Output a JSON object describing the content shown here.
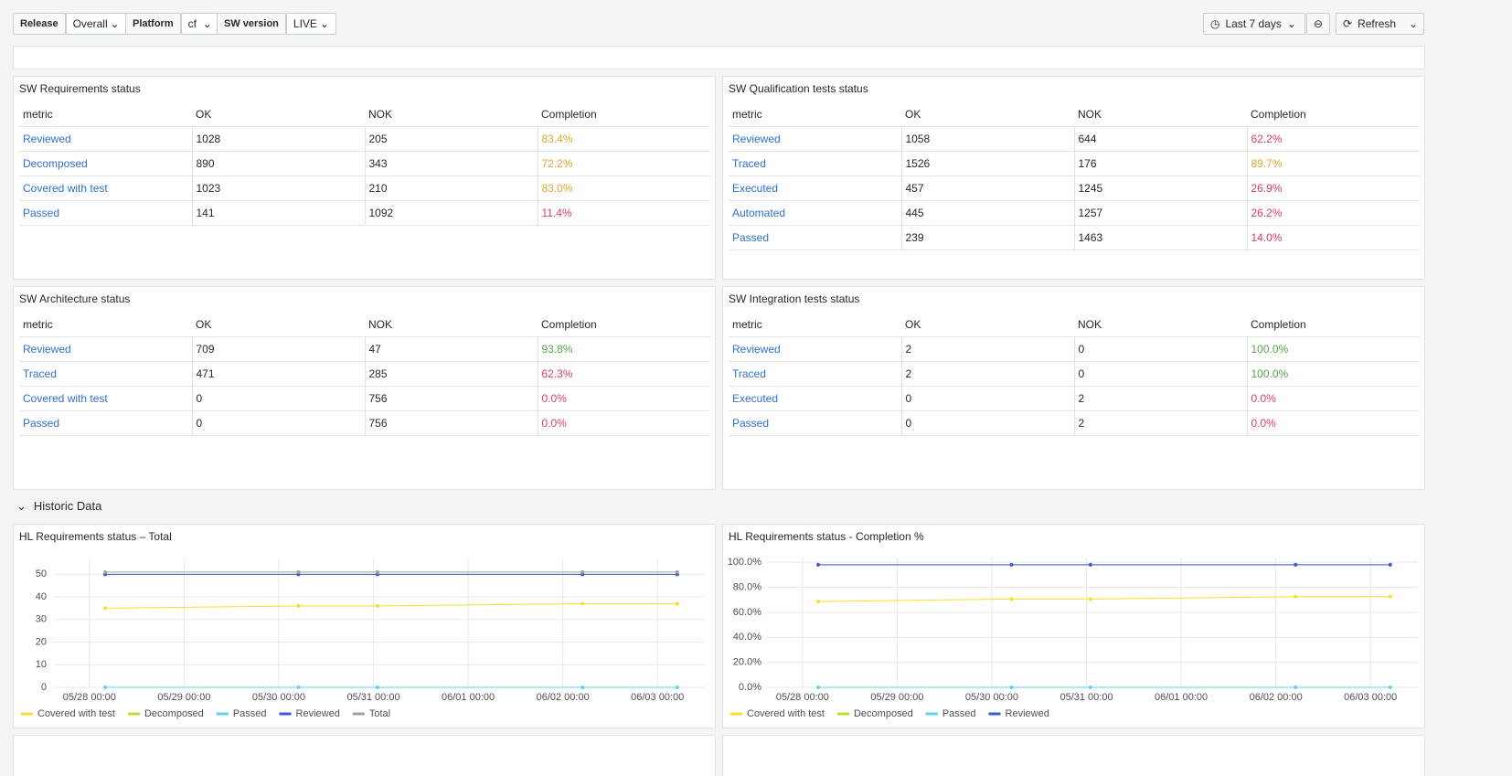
{
  "toolbar": {
    "variables": [
      {
        "label": "Release",
        "value": "Overall"
      },
      {
        "label": "Platform",
        "value": "cf"
      },
      {
        "label": "SW version",
        "value": "LIVE"
      }
    ],
    "time_range": "Last 7 days",
    "refresh": "Refresh"
  },
  "tables": [
    {
      "title": "SW Requirements status",
      "columns": [
        "metric",
        "OK",
        "NOK",
        "Completion"
      ],
      "rows": [
        [
          "Reviewed",
          "1028",
          "205",
          "83.4%"
        ],
        [
          "Decomposed",
          "890",
          "343",
          "72.2%"
        ],
        [
          "Covered with test",
          "1023",
          "210",
          "83.0%"
        ],
        [
          "Passed",
          "141",
          "1092",
          "11.4%"
        ]
      ],
      "completion_colors": [
        "#e0a82e",
        "#e0a82e",
        "#e0a82e",
        "#d9405e"
      ]
    },
    {
      "title": "SW Qualification tests status",
      "columns": [
        "metric",
        "OK",
        "NOK",
        "Completion"
      ],
      "rows": [
        [
          "Reviewed",
          "1058",
          "644",
          "62.2%"
        ],
        [
          "Traced",
          "1526",
          "176",
          "89.7%"
        ],
        [
          "Executed",
          "457",
          "1245",
          "26.9%"
        ],
        [
          "Automated",
          "445",
          "1257",
          "26.2%"
        ],
        [
          "Passed",
          "239",
          "1463",
          "14.0%"
        ]
      ],
      "completion_colors": [
        "#d9405e",
        "#e0a82e",
        "#d9405e",
        "#d9405e",
        "#d9405e"
      ]
    },
    {
      "title": "SW Architecture status",
      "columns": [
        "metric",
        "OK",
        "NOK",
        "Completion"
      ],
      "rows": [
        [
          "Reviewed",
          "709",
          "47",
          "93.8%"
        ],
        [
          "Traced",
          "471",
          "285",
          "62.3%"
        ],
        [
          "Covered with test",
          "0",
          "756",
          "0.0%"
        ],
        [
          "Passed",
          "0",
          "756",
          "0.0%"
        ]
      ],
      "completion_colors": [
        "#56a64b",
        "#d9405e",
        "#d9405e",
        "#d9405e"
      ]
    },
    {
      "title": "SW Integration tests status",
      "columns": [
        "metric",
        "OK",
        "NOK",
        "Completion"
      ],
      "rows": [
        [
          "Reviewed",
          "2",
          "0",
          "100.0%"
        ],
        [
          "Traced",
          "2",
          "0",
          "100.0%"
        ],
        [
          "Executed",
          "0",
          "2",
          "0.0%"
        ],
        [
          "Passed",
          "0",
          "2",
          "0.0%"
        ]
      ],
      "completion_colors": [
        "#56a64b",
        "#56a64b",
        "#d9405e",
        "#d9405e"
      ]
    }
  ],
  "section": "Historic Data",
  "chart_data": [
    {
      "type": "line",
      "title": "HL Requirements status – Total",
      "x": [
        "05/28 04:00",
        "05/30 05:00",
        "05/31 01:00",
        "06/02 05:00",
        "06/03 05:00"
      ],
      "xlim": [
        "05/27 15:00",
        "06/03 12:00"
      ],
      "xticks": [
        "05/28 00:00",
        "05/29 00:00",
        "05/30 00:00",
        "05/31 00:00",
        "06/01 00:00",
        "06/02 00:00",
        "06/03 00:00"
      ],
      "ylim": [
        0,
        57
      ],
      "yticks": [
        0,
        10,
        20,
        30,
        40,
        50
      ],
      "grid": true,
      "legend": "bottom",
      "series": [
        {
          "name": "Covered with test",
          "color": "#fade2a",
          "values": [
            35,
            36,
            36,
            37,
            37
          ]
        },
        {
          "name": "Decomposed",
          "color": "#c8d72f",
          "values": [
            50,
            50,
            50,
            50,
            50
          ]
        },
        {
          "name": "Passed",
          "color": "#5ed3ea",
          "values": [
            0,
            0,
            0,
            0,
            0
          ]
        },
        {
          "name": "Reviewed",
          "color": "#3f5ad8",
          "values": [
            50,
            50,
            50,
            50,
            50
          ]
        },
        {
          "name": "Total",
          "color": "#a0a0a0",
          "values": [
            51,
            51,
            51,
            51,
            51
          ]
        }
      ]
    },
    {
      "type": "line",
      "title": "HL Requirements status - Completion %",
      "x": [
        "05/28 04:00",
        "05/30 05:00",
        "05/31 01:00",
        "06/02 05:00",
        "06/03 05:00"
      ],
      "xlim": [
        "05/27 15:00",
        "06/03 12:00"
      ],
      "xticks": [
        "05/28 00:00",
        "05/29 00:00",
        "05/30 00:00",
        "05/31 00:00",
        "06/01 00:00",
        "06/02 00:00",
        "06/03 00:00"
      ],
      "ylim": [
        0,
        103
      ],
      "yticks": [
        {
          "value": 0,
          "label": "0.0%"
        },
        {
          "value": 20,
          "label": "20.0%"
        },
        {
          "value": 40,
          "label": "40.0%"
        },
        {
          "value": 60,
          "label": "60.0%"
        },
        {
          "value": 80,
          "label": "80.0%"
        },
        {
          "value": 100,
          "label": "100.0%"
        }
      ],
      "grid": true,
      "legend": "bottom",
      "series": [
        {
          "name": "Covered with test",
          "color": "#fade2a",
          "values": [
            68.6,
            70.6,
            70.6,
            72.5,
            72.5
          ]
        },
        {
          "name": "Decomposed",
          "color": "#c8d72f",
          "values": [
            98.0,
            98.0,
            98.0,
            98.0,
            98.0
          ]
        },
        {
          "name": "Passed",
          "color": "#5ed3ea",
          "values": [
            0,
            0,
            0,
            0,
            0
          ]
        },
        {
          "name": "Reviewed",
          "color": "#3f5ad8",
          "values": [
            98.0,
            98.0,
            98.0,
            98.0,
            98.0
          ]
        }
      ]
    }
  ]
}
